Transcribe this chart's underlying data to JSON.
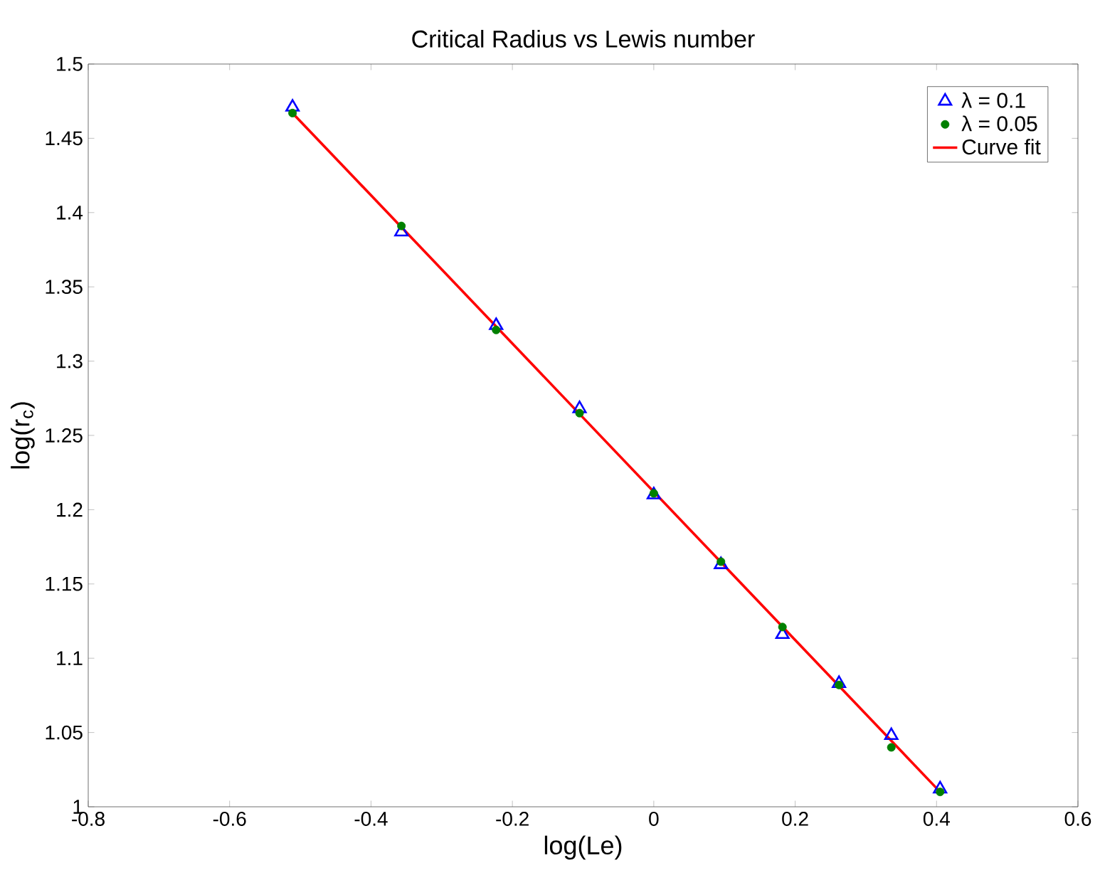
{
  "chart_data": {
    "type": "scatter",
    "title": "Critical Radius vs Lewis number",
    "xlabel": "log(Le)",
    "ylabel": "log(r$_{c}$)",
    "xlim": [
      -0.8,
      0.6
    ],
    "xticks": [
      -0.8,
      -0.6,
      -0.4,
      -0.2,
      0,
      0.2,
      0.4,
      0.6
    ],
    "ylim": [
      1,
      1.5
    ],
    "yticks": [
      1,
      1.05,
      1.1,
      1.15,
      1.2,
      1.25,
      1.3,
      1.35,
      1.4,
      1.45,
      1.5
    ],
    "grid": false,
    "legend": "top right",
    "series": [
      {
        "name": "λ = 0.1",
        "color": "#0000ff",
        "marker": "triangle",
        "x": [
          -0.511,
          -0.357,
          -0.223,
          -0.105,
          0,
          0.095,
          0.182,
          0.262,
          0.336,
          0.405
        ],
        "values": [
          1.471,
          1.387,
          1.324,
          1.268,
          1.21,
          1.163,
          1.116,
          1.083,
          1.048,
          1.012
        ]
      },
      {
        "name": "λ = 0.05",
        "color": "#008000",
        "marker": "circle",
        "x": [
          -0.511,
          -0.357,
          -0.223,
          -0.105,
          0,
          0.095,
          0.182,
          0.262,
          0.336,
          0.405
        ],
        "values": [
          1.467,
          1.391,
          1.321,
          1.265,
          1.211,
          1.165,
          1.121,
          1.082,
          1.04,
          1.01
        ]
      },
      {
        "name": "Curve fit",
        "type": "line",
        "color": "#ff0000",
        "marker": "none",
        "line_style": "solid",
        "x": [
          -0.511,
          0.405
        ],
        "values": [
          1.467,
          1.01
        ]
      }
    ]
  }
}
